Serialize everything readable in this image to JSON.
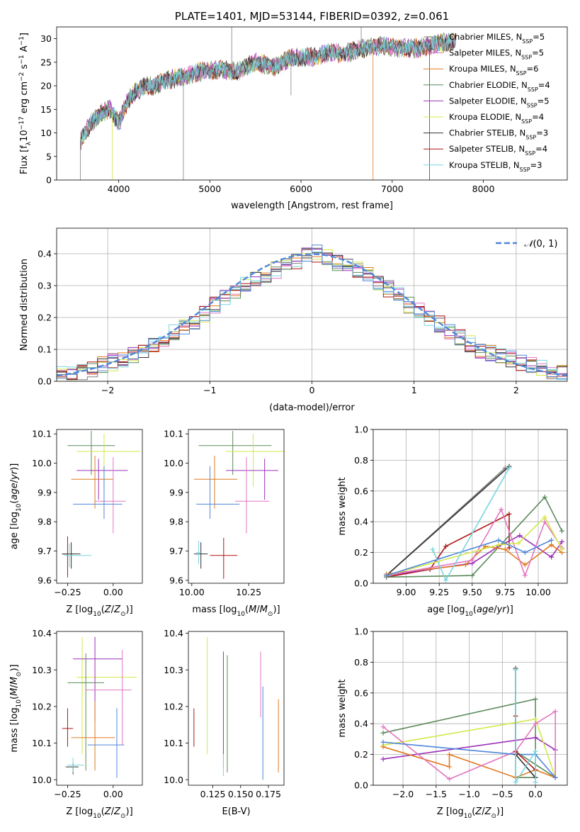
{
  "colors": {
    "Chabrier MILES": "#808080",
    "Salpeter MILES": "#e377c2",
    "Kroupa MILES": "#e07a1f",
    "Chabrier ELODIE": "#5b8a5b",
    "Salpeter ELODIE": "#9b30b8",
    "Kroupa ELODIE": "#d4e84a",
    "Chabrier STELIB": "#333333",
    "Salpeter STELIB": "#b01515",
    "Kroupa STELIB": "#78d6e0",
    "gauss": "#4f86d9",
    "blue_extra": "#4f86d9"
  },
  "chart_data": [
    {
      "type": "line",
      "title": "PLATE=1401, MJD=53144, FIBERID=0392, z=0.061",
      "xlabel": "wavelength [Angstrom, rest frame]",
      "ylabel": "Flux [f_λ10^-17 erg cm^-2 s^-1 A^-1]",
      "xlim": [
        3320,
        8920
      ],
      "ylim": [
        0,
        32.5
      ],
      "xticks": [
        "4000",
        "5000",
        "6000",
        "7000",
        "8000"
      ],
      "yticks": [
        "0",
        "5",
        "10",
        "15",
        "20",
        "25",
        "30"
      ],
      "grid": false,
      "legend": "upper-right",
      "legend_entries": [
        {
          "name": "Chabrier MILES",
          "sub": "N",
          "subscript": "SSP",
          "value": "=5"
        },
        {
          "name": "Salpeter MILES",
          "sub": "N",
          "subscript": "SSP",
          "value": "=5"
        },
        {
          "name": "Kroupa MILES",
          "sub": "N",
          "subscript": "SSP",
          "value": "=6"
        },
        {
          "name": "Chabrier ELODIE",
          "sub": "N",
          "subscript": "SSP",
          "value": "=4"
        },
        {
          "name": "Salpeter ELODIE",
          "sub": "N",
          "subscript": "SSP",
          "value": "=5"
        },
        {
          "name": "Kroupa ELODIE",
          "sub": "N",
          "subscript": "SSP",
          "value": "=4"
        },
        {
          "name": "Chabrier STELIB",
          "sub": "N",
          "subscript": "SSP",
          "value": "=3"
        },
        {
          "name": "Salpeter STELIB",
          "sub": "N",
          "subscript": "SSP",
          "value": "=4"
        },
        {
          "name": "Kroupa STELIB",
          "sub": "N",
          "subscript": "SSP",
          "value": "=3"
        }
      ],
      "spectrum_envelope": {
        "x": [
          3580,
          3620,
          3700,
          3800,
          3900,
          4000,
          4100,
          4200,
          4300,
          4400,
          4500,
          4700,
          4900,
          5100,
          5300,
          5500,
          5700,
          5900,
          6100,
          6300,
          6500,
          6700,
          6900,
          7100,
          7300,
          7500,
          7700
        ],
        "y": [
          8,
          10,
          12,
          14,
          15,
          12,
          17,
          19,
          20,
          20,
          21,
          22,
          23,
          23.5,
          23,
          25,
          24,
          26,
          26,
          27,
          27,
          28,
          28.5,
          28,
          28,
          29,
          29.5
        ]
      }
    },
    {
      "type": "area",
      "xlabel": "(data-model)/error",
      "ylabel": "Normed distribution",
      "xlim": [
        -2.5,
        2.5
      ],
      "ylim": [
        0,
        0.48
      ],
      "xticks": [
        "−2",
        "−1",
        "0",
        "1",
        "2"
      ],
      "yticks": [
        "0.0",
        "0.1",
        "0.2",
        "0.3",
        "0.4"
      ],
      "grid": true,
      "legend": "upper-right",
      "gauss_label": "N(0,1)",
      "bin_width": 0.1,
      "base_hist": [
        0.02,
        0.02,
        0.03,
        0.04,
        0.05,
        0.06,
        0.07,
        0.08,
        0.1,
        0.11,
        0.13,
        0.15,
        0.17,
        0.19,
        0.21,
        0.24,
        0.26,
        0.28,
        0.3,
        0.32,
        0.33,
        0.35,
        0.37,
        0.38,
        0.4,
        0.4,
        0.39,
        0.37,
        0.36,
        0.35,
        0.33,
        0.31,
        0.29,
        0.27,
        0.24,
        0.22,
        0.2,
        0.18,
        0.16,
        0.14,
        0.12,
        0.1,
        0.09,
        0.08,
        0.07,
        0.06,
        0.05,
        0.04,
        0.03,
        0.03
      ]
    },
    {
      "type": "scatter",
      "xlabel": "Z [log10(Z/Z⊙)]",
      "ylabel": "age  [log10(age/yr)]",
      "xlim": [
        -0.31,
        0.16
      ],
      "ylim": [
        9.59,
        10.115
      ],
      "xticks": [
        "−0.25",
        "0.00"
      ],
      "yticks": [
        "9.6",
        "9.7",
        "9.8",
        "9.9",
        "10.0",
        "10.1"
      ],
      "errorbars": [
        {
          "series": "Chabrier ELODIE",
          "x": -0.12,
          "y": 10.06,
          "xerr": [
            0.13,
            0.13
          ],
          "yerr": [
            0.1,
            0.05
          ]
        },
        {
          "series": "Kroupa ELODIE",
          "x": -0.05,
          "y": 10.04,
          "xerr": [
            0.15,
            0.2
          ],
          "yerr": [
            0.12,
            0.06
          ]
        },
        {
          "series": "Salpeter ELODIE",
          "x": -0.08,
          "y": 9.975,
          "xerr": [
            0.12,
            0.16
          ],
          "yerr": [
            0.1,
            0.04
          ]
        },
        {
          "series": "Kroupa MILES",
          "x": -0.1,
          "y": 9.945,
          "xerr": [
            0.13,
            0.1
          ],
          "yerr": [
            0.1,
            0.08
          ]
        },
        {
          "series": "Salpeter MILES",
          "x": 0.0,
          "y": 9.87,
          "xerr": [
            0.1,
            0.07
          ],
          "yerr": [
            0.11,
            0.15
          ]
        },
        {
          "series": "blue_extra",
          "x": -0.05,
          "y": 9.86,
          "xerr": [
            0.17,
            0.1
          ],
          "yerr": [
            0.05,
            0.13
          ]
        },
        {
          "series": "Salpeter STELIB",
          "x": -0.25,
          "y": 9.69,
          "xerr": [
            0.03,
            0.03
          ],
          "yerr": [
            0.08,
            0.06
          ]
        },
        {
          "series": "Chabrier STELIB",
          "x": -0.23,
          "y": 9.69,
          "xerr": [
            0.05,
            0.05
          ],
          "yerr": [
            0.05,
            0.04
          ]
        },
        {
          "series": "Kroupa STELIB",
          "x": -0.24,
          "y": 9.685,
          "xerr": [
            0.03,
            0.12
          ],
          "yerr": [
            0.04,
            0.04
          ]
        }
      ]
    },
    {
      "type": "scatter",
      "xlabel": "mass [log10(M/M⊙)]",
      "ylabel": "",
      "xlim": [
        9.985,
        10.405
      ],
      "ylim": [
        9.59,
        10.115
      ],
      "xticks": [
        "10.00",
        "10.25"
      ],
      "yticks": [
        "9.6",
        "9.7",
        "9.8",
        "9.9",
        "10.0",
        "10.1"
      ],
      "errorbars": [
        {
          "series": "Chabrier ELODIE",
          "x": 10.18,
          "y": 10.06,
          "xerr": [
            0.15,
            0.17
          ],
          "yerr": [
            0.1,
            0.05
          ]
        },
        {
          "series": "Kroupa ELODIE",
          "x": 10.27,
          "y": 10.04,
          "xerr": [
            0.12,
            0.14
          ],
          "yerr": [
            0.12,
            0.06
          ]
        },
        {
          "series": "Salpeter ELODIE",
          "x": 10.32,
          "y": 9.975,
          "xerr": [
            0.17,
            0.06
          ],
          "yerr": [
            0.1,
            0.04
          ]
        },
        {
          "series": "Kroupa MILES",
          "x": 10.1,
          "y": 9.945,
          "xerr": [
            0.09,
            0.1
          ],
          "yerr": [
            0.1,
            0.08
          ]
        },
        {
          "series": "Salpeter MILES",
          "x": 10.24,
          "y": 9.87,
          "xerr": [
            0.05,
            0.1
          ],
          "yerr": [
            0.11,
            0.15
          ]
        },
        {
          "series": "blue_extra",
          "x": 10.08,
          "y": 9.86,
          "xerr": [
            0.06,
            0.13
          ],
          "yerr": [
            0.05,
            0.13
          ]
        },
        {
          "series": "Salpeter STELIB",
          "x": 10.14,
          "y": 9.685,
          "xerr": [
            0.06,
            0.06
          ],
          "yerr": [
            0.08,
            0.06
          ]
        },
        {
          "series": "Chabrier STELIB",
          "x": 10.04,
          "y": 9.69,
          "xerr": [
            0.03,
            0.03
          ],
          "yerr": [
            0.05,
            0.04
          ]
        },
        {
          "series": "Kroupa STELIB",
          "x": 10.03,
          "y": 9.695,
          "xerr": [
            0.01,
            0.01
          ],
          "yerr": [
            0.04,
            0.04
          ]
        }
      ]
    },
    {
      "type": "line",
      "xlabel": "age  [log10(age/yr)]",
      "ylabel": "mass weight",
      "xlim": [
        8.75,
        10.22
      ],
      "ylim": [
        0,
        1.0
      ],
      "xticks": [
        "9.00",
        "9.25",
        "9.50",
        "9.75",
        "10.00"
      ],
      "yticks": [
        "0.0",
        "0.2",
        "0.4",
        "0.6",
        "0.8",
        "1.0"
      ],
      "grid": true,
      "series": [
        {
          "name": "Chabrier MILES",
          "x": [
            8.85,
            9.75
          ],
          "y": [
            0.05,
            0.75
          ]
        },
        {
          "name": "Chabrier STELIB",
          "x": [
            8.85,
            9.78
          ],
          "y": [
            0.05,
            0.76
          ]
        },
        {
          "name": "Salpeter STELIB",
          "x": [
            8.85,
            9.18,
            9.3,
            9.78,
            9.78
          ],
          "y": [
            0.04,
            0.09,
            0.24,
            0.45,
            0.23
          ]
        },
        {
          "name": "Chabrier ELODIE",
          "x": [
            8.85,
            9.5,
            10.05,
            10.18
          ],
          "y": [
            0.04,
            0.05,
            0.56,
            0.34
          ]
        },
        {
          "name": "Salpeter ELODIE",
          "x": [
            8.85,
            9.5,
            9.7,
            9.86,
            10.1,
            10.18
          ],
          "y": [
            0.05,
            0.13,
            0.24,
            0.31,
            0.17,
            0.27
          ]
        },
        {
          "name": "Kroupa MILES",
          "x": [
            8.85,
            9.45,
            9.6,
            9.75,
            9.9,
            10.1,
            10.18
          ],
          "y": [
            0.06,
            0.12,
            0.24,
            0.22,
            0.12,
            0.25,
            0.2
          ]
        },
        {
          "name": "Salpeter MILES",
          "x": [
            8.85,
            9.5,
            9.72,
            9.9,
            10.05,
            10.18
          ],
          "y": [
            0.05,
            0.15,
            0.48,
            0.05,
            0.4,
            0.23
          ]
        },
        {
          "name": "Kroupa ELODIE",
          "x": [
            8.85,
            9.7,
            9.85,
            10.05,
            10.18
          ],
          "y": [
            0.05,
            0.25,
            0.26,
            0.43,
            0.22
          ]
        },
        {
          "name": "blue_extra",
          "x": [
            8.85,
            9.7,
            9.9,
            10.1
          ],
          "y": [
            0.05,
            0.28,
            0.2,
            0.28
          ]
        },
        {
          "name": "Kroupa STELIB",
          "x": [
            9.2,
            9.3,
            9.78
          ],
          "y": [
            0.22,
            0.02,
            0.75
          ]
        }
      ]
    },
    {
      "type": "scatter",
      "xlabel": "Z [log10(Z/Z⊙)]",
      "ylabel": "mass [log10(M/M⊙)]",
      "xlim": [
        -0.31,
        0.16
      ],
      "ylim": [
        9.985,
        10.405
      ],
      "xticks": [
        "−0.25",
        "0.00"
      ],
      "yticks": [
        "10.0",
        "10.1",
        "10.2",
        "10.3",
        "10.4"
      ],
      "errorbars": [
        {
          "series": "Kroupa ELODIE",
          "x": -0.17,
          "y": 10.28,
          "xerr": [
            0.03,
            0.3
          ],
          "yerr": [
            0.21,
            0.11
          ]
        },
        {
          "series": "Salpeter ELODIE",
          "x": -0.1,
          "y": 10.33,
          "xerr": [
            0.12,
            0.15
          ],
          "yerr": [
            0.17,
            0.06
          ]
        },
        {
          "series": "Chabrier ELODIE",
          "x": -0.15,
          "y": 10.265,
          "xerr": [
            0.1,
            0.1
          ],
          "yerr": [
            0.24,
            0.08
          ]
        },
        {
          "series": "Salpeter MILES",
          "x": 0.05,
          "y": 10.245,
          "xerr": [
            0.2,
            0.05
          ],
          "yerr": [
            0.15,
            0.11
          ]
        },
        {
          "series": "Kroupa MILES",
          "x": -0.1,
          "y": 10.115,
          "xerr": [
            0.13,
            0.11
          ],
          "yerr": [
            0.09,
            0.1
          ]
        },
        {
          "series": "blue_extra",
          "x": 0.02,
          "y": 10.095,
          "xerr": [
            0.16,
            0.04
          ],
          "yerr": [
            0.09,
            0.1
          ]
        },
        {
          "series": "Salpeter STELIB",
          "x": -0.25,
          "y": 10.14,
          "xerr": [
            0.03,
            0.03
          ],
          "yerr": [
            0.05,
            0.055
          ]
        },
        {
          "series": "Chabrier STELIB",
          "x": -0.22,
          "y": 10.035,
          "xerr": [
            0.04,
            0.03
          ],
          "yerr": [
            0.02,
            0.01
          ]
        },
        {
          "series": "Kroupa STELIB",
          "x": -0.22,
          "y": 10.04,
          "xerr": [
            0.03,
            0.06
          ],
          "yerr": [
            0.02,
            0.02
          ]
        }
      ]
    },
    {
      "type": "scatter",
      "xlabel": "E(B-V)",
      "ylabel": "",
      "xlim": [
        0.103,
        0.189
      ],
      "ylim": [
        9.985,
        10.405
      ],
      "xticks": [
        "0.125",
        "0.150",
        "0.175"
      ],
      "yticks": [
        "10.0",
        "10.1",
        "10.2",
        "10.3",
        "10.4"
      ],
      "vlines": [
        {
          "series": "Salpeter STELIB",
          "x": 0.108,
          "y": [
            10.09,
            10.195
          ]
        },
        {
          "series": "Kroupa ELODIE",
          "x": 0.12,
          "y": [
            10.07,
            10.39
          ]
        },
        {
          "series": "Salpeter ELODIE",
          "x": 0.1345,
          "y": [
            10.03,
            10.35
          ]
        },
        {
          "series": "Kroupa STELIB",
          "x": 0.1345,
          "y": [
            10.01,
            10.07
          ]
        },
        {
          "series": "Chabrier ELODIE",
          "x": 0.138,
          "y": [
            10.02,
            10.34
          ]
        },
        {
          "series": "Salpeter MILES",
          "x": 0.168,
          "y": [
            10.17,
            10.35
          ]
        },
        {
          "series": "blue_extra",
          "x": 0.17,
          "y": [
            10.0,
            10.255
          ]
        },
        {
          "series": "Kroupa MILES",
          "x": 0.184,
          "y": [
            10.02,
            10.22
          ]
        }
      ]
    },
    {
      "type": "line",
      "xlabel": "Z [log10(Z/Z⊙)]",
      "ylabel": "mass weight",
      "xlim": [
        -2.45,
        0.48
      ],
      "ylim": [
        0,
        1.0
      ],
      "xticks": [
        "−2.0",
        "−1.5",
        "−1.0",
        "−0.5",
        "0.0"
      ],
      "yticks": [
        "0.0",
        "0.2",
        "0.4",
        "0.6",
        "0.8",
        "1.0"
      ],
      "grid": true,
      "series": [
        {
          "name": "Chabrier ELODIE",
          "x": [
            -2.3,
            0,
            0,
            -0.3,
            -0.3,
            0.3
          ],
          "y": [
            0.34,
            0.56,
            0.05,
            0.05,
            0.22,
            0.05
          ]
        },
        {
          "name": "Salpeter ELODIE",
          "x": [
            -2.3,
            0,
            0.3,
            0.3
          ],
          "y": [
            0.17,
            0.31,
            0.23,
            0.05
          ]
        },
        {
          "name": "Kroupa ELODIE",
          "x": [
            -2.3,
            0,
            0.3
          ],
          "y": [
            0.26,
            0.43,
            0.05
          ]
        },
        {
          "name": "Kroupa MILES",
          "x": [
            -2.3,
            -1.3,
            -1.3,
            -0.3,
            0,
            0.3
          ],
          "y": [
            0.25,
            0.12,
            0.2,
            0.05,
            0.1,
            0.05
          ]
        },
        {
          "name": "Salpeter MILES",
          "x": [
            -2.3,
            -1.3,
            -0.3,
            0,
            0.3,
            0.3
          ],
          "y": [
            0.38,
            0.04,
            0.22,
            0.4,
            0.48,
            0.05
          ]
        },
        {
          "name": "blue_extra",
          "x": [
            -2.3,
            -0.3,
            0,
            0.3
          ],
          "y": [
            0.28,
            0.2,
            0.2,
            0.05
          ]
        },
        {
          "name": "Chabrier STELIB",
          "x": [
            -0.3,
            -0.3,
            0
          ],
          "y": [
            0.76,
            0.2,
            0.05
          ]
        },
        {
          "name": "Salpeter STELIB",
          "x": [
            -0.3,
            -0.3,
            0
          ],
          "y": [
            0.45,
            0.22,
            0.1
          ]
        },
        {
          "name": "Kroupa STELIB",
          "x": [
            -0.3,
            -0.3,
            0,
            0
          ],
          "y": [
            0.75,
            0.02,
            0.22,
            0.02
          ]
        }
      ]
    }
  ]
}
